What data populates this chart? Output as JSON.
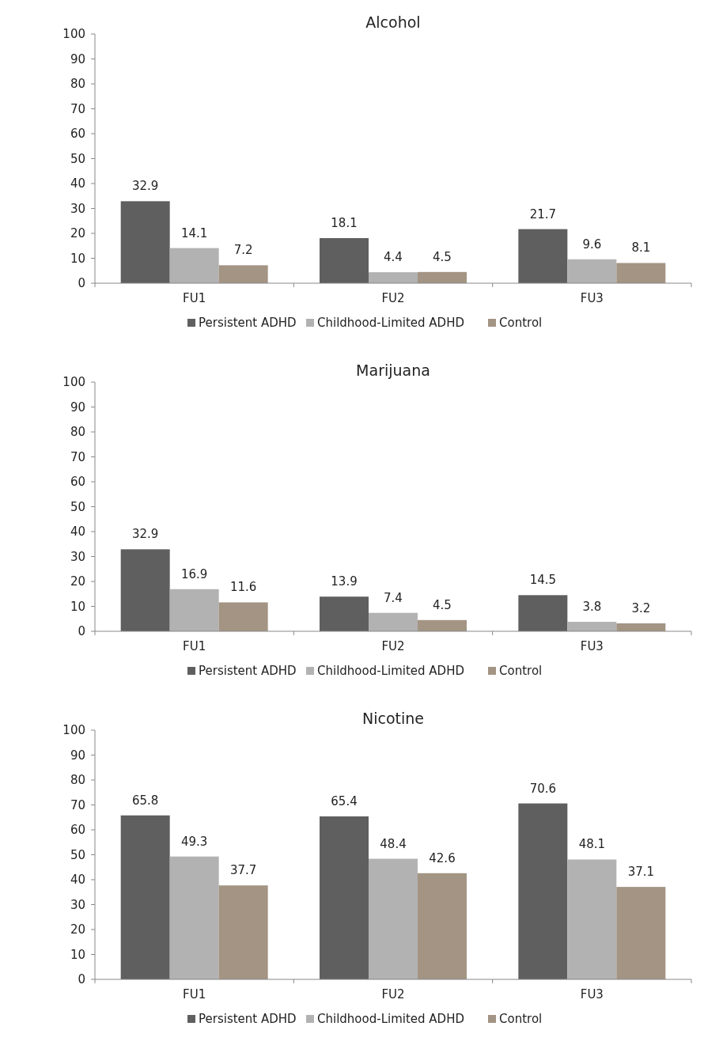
{
  "chart_data": [
    {
      "type": "bar",
      "title": "Alcohol",
      "categories": [
        "FU1",
        "FU2",
        "FU3"
      ],
      "series": [
        {
          "name": "Persistent ADHD",
          "color": "#5f5f5f",
          "values": [
            32.9,
            18.1,
            21.7
          ]
        },
        {
          "name": "Childhood-Limited ADHD",
          "color": "#b2b2b2",
          "values": [
            14.1,
            4.4,
            9.6
          ]
        },
        {
          "name": "Control",
          "color": "#a39484",
          "values": [
            7.2,
            4.5,
            8.1
          ]
        }
      ],
      "ylim": [
        0,
        100
      ],
      "yticks": [
        0,
        10,
        20,
        30,
        40,
        50,
        60,
        70,
        80,
        90,
        100
      ],
      "data_labels": true,
      "legend": "bottom",
      "grid": false
    },
    {
      "type": "bar",
      "title": "Marijuana",
      "categories": [
        "FU1",
        "FU2",
        "FU3"
      ],
      "series": [
        {
          "name": "Persistent ADHD",
          "color": "#5f5f5f",
          "values": [
            32.9,
            13.9,
            14.5
          ]
        },
        {
          "name": "Childhood-Limited ADHD",
          "color": "#b2b2b2",
          "values": [
            16.9,
            7.4,
            3.8
          ]
        },
        {
          "name": "Control",
          "color": "#a39484",
          "values": [
            11.6,
            4.5,
            3.2
          ]
        }
      ],
      "ylim": [
        0,
        100
      ],
      "yticks": [
        0,
        10,
        20,
        30,
        40,
        50,
        60,
        70,
        80,
        90,
        100
      ],
      "data_labels": true,
      "legend": "bottom",
      "grid": false
    },
    {
      "type": "bar",
      "title": "Nicotine",
      "categories": [
        "FU1",
        "FU2",
        "FU3"
      ],
      "series": [
        {
          "name": "Persistent ADHD",
          "color": "#5f5f5f",
          "values": [
            65.8,
            65.4,
            70.6
          ]
        },
        {
          "name": "Childhood-Limited ADHD",
          "color": "#b2b2b2",
          "values": [
            49.3,
            48.4,
            48.1
          ]
        },
        {
          "name": "Control",
          "color": "#a39484",
          "values": [
            37.7,
            42.6,
            37.1
          ]
        }
      ],
      "ylim": [
        0,
        100
      ],
      "yticks": [
        0,
        10,
        20,
        30,
        40,
        50,
        60,
        70,
        80,
        90,
        100
      ],
      "data_labels": true,
      "legend": "bottom",
      "grid": false
    }
  ]
}
